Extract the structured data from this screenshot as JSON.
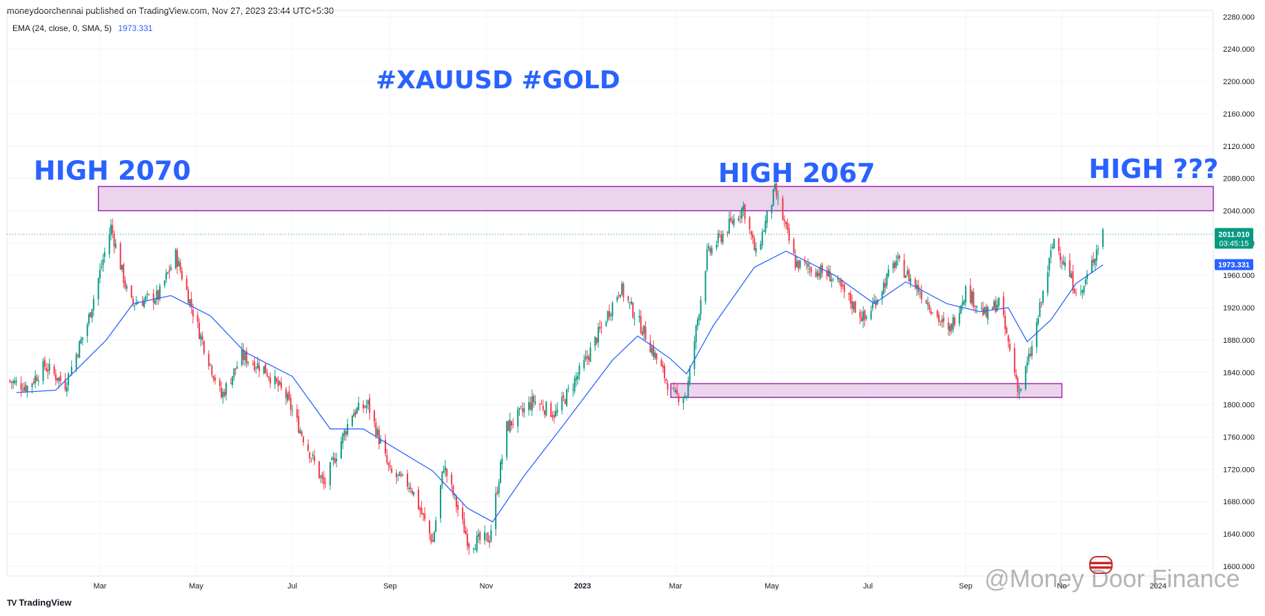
{
  "header": {
    "published": "moneydoorchennai published on TradingView.com, Nov 27, 2023 23:44 UTC+5:30",
    "indicator_label": "EMA (24, close, 0, SMA, 5)",
    "indicator_value": "1973.331"
  },
  "footer": {
    "logo_mark": "TV",
    "logo_text": "TradingView",
    "watermark": "@Money  Door Finance"
  },
  "colors": {
    "up": "#089981",
    "down": "#f23645",
    "ema": "#2962ff",
    "zone_fill": "#e9cdea",
    "zone_stroke": "#9c27b0",
    "annotation": "#2962ff",
    "price_line": "#089981"
  },
  "chart_data": {
    "type": "candlestick",
    "title": "#XAUUSD #GOLD",
    "instrument": "XAUUSD",
    "y_ticks": [
      "2280.000",
      "2240.000",
      "2200.000",
      "2160.000",
      "2120.000",
      "2080.000",
      "2040.000",
      "2000.000",
      "1960.000",
      "1920.000",
      "1880.000",
      "1840.000",
      "1800.000",
      "1760.000",
      "1720.000",
      "1680.000",
      "1640.000",
      "1600.000"
    ],
    "ylim": [
      1588,
      2288
    ],
    "x_range": [
      "2022-01-01",
      "2024-02-05"
    ],
    "x_ticks": [
      {
        "date": "2022-03-01",
        "label": "Mar",
        "bold": false
      },
      {
        "date": "2022-05-01",
        "label": "May",
        "bold": false
      },
      {
        "date": "2022-07-01",
        "label": "Jul",
        "bold": false
      },
      {
        "date": "2022-09-01",
        "label": "Sep",
        "bold": false
      },
      {
        "date": "2022-11-01",
        "label": "Nov",
        "bold": false
      },
      {
        "date": "2023-01-01",
        "label": "2023",
        "bold": true
      },
      {
        "date": "2023-03-01",
        "label": "Mar",
        "bold": false
      },
      {
        "date": "2023-05-01",
        "label": "May",
        "bold": false
      },
      {
        "date": "2023-07-01",
        "label": "Jul",
        "bold": false
      },
      {
        "date": "2023-09-01",
        "label": "Sep",
        "bold": false
      },
      {
        "date": "2023-11-01",
        "label": "No",
        "bold": false
      },
      {
        "date": "2024-01-01",
        "label": "2024",
        "bold": false
      }
    ],
    "price_path": [
      [
        "2022-01-01",
        1830
      ],
      [
        "2022-01-14",
        1822
      ],
      [
        "2022-01-25",
        1848
      ],
      [
        "2022-02-07",
        1825
      ],
      [
        "2022-02-21",
        1900
      ],
      [
        "2022-03-08",
        2020
      ],
      [
        "2022-03-20",
        1925
      ],
      [
        "2022-04-07",
        1934
      ],
      [
        "2022-04-18",
        1985
      ],
      [
        "2022-05-03",
        1890
      ],
      [
        "2022-05-17",
        1810
      ],
      [
        "2022-05-30",
        1860
      ],
      [
        "2022-06-13",
        1845
      ],
      [
        "2022-06-27",
        1810
      ],
      [
        "2022-07-21",
        1700
      ],
      [
        "2022-08-08",
        1790
      ],
      [
        "2022-08-18",
        1800
      ],
      [
        "2022-09-01",
        1715
      ],
      [
        "2022-09-14",
        1700
      ],
      [
        "2022-09-28",
        1630
      ],
      [
        "2022-10-05",
        1725
      ],
      [
        "2022-10-21",
        1628
      ],
      [
        "2022-11-03",
        1635
      ],
      [
        "2022-11-14",
        1772
      ],
      [
        "2022-12-01",
        1805
      ],
      [
        "2022-12-15",
        1788
      ],
      [
        "2023-01-02",
        1850
      ],
      [
        "2023-01-25",
        1945
      ],
      [
        "2023-02-09",
        1890
      ],
      [
        "2023-02-28",
        1810
      ],
      [
        "2023-03-08",
        1813
      ],
      [
        "2023-03-21",
        1985
      ],
      [
        "2023-04-13",
        2045
      ],
      [
        "2023-04-21",
        1985
      ],
      [
        "2023-05-03",
        2065
      ],
      [
        "2023-05-16",
        1975
      ],
      [
        "2023-06-07",
        1960
      ],
      [
        "2023-06-29",
        1905
      ],
      [
        "2023-07-19",
        1978
      ],
      [
        "2023-08-07",
        1930
      ],
      [
        "2023-08-21",
        1888
      ],
      [
        "2023-09-01",
        1942
      ],
      [
        "2023-09-14",
        1910
      ],
      [
        "2023-09-22",
        1928
      ],
      [
        "2023-10-05",
        1815
      ],
      [
        "2023-10-13",
        1870
      ],
      [
        "2023-10-27",
        2005
      ],
      [
        "2023-11-08",
        1950
      ],
      [
        "2023-11-13",
        1935
      ],
      [
        "2023-11-27",
        2015
      ]
    ],
    "ema": {
      "label": "EMA (24, close, 0, SMA, 5)",
      "last": 1973.331,
      "points": [
        [
          "2022-01-07",
          1815
        ],
        [
          "2022-02-01",
          1818
        ],
        [
          "2022-03-05",
          1880
        ],
        [
          "2022-03-22",
          1925
        ],
        [
          "2022-04-15",
          1935
        ],
        [
          "2022-05-10",
          1910
        ],
        [
          "2022-06-01",
          1865
        ],
        [
          "2022-07-01",
          1835
        ],
        [
          "2022-07-25",
          1770
        ],
        [
          "2022-08-15",
          1770
        ],
        [
          "2022-09-05",
          1745
        ],
        [
          "2022-09-28",
          1718
        ],
        [
          "2022-10-20",
          1672
        ],
        [
          "2022-11-05",
          1655
        ],
        [
          "2022-11-25",
          1712
        ],
        [
          "2022-12-20",
          1775
        ],
        [
          "2023-01-20",
          1855
        ],
        [
          "2023-02-05",
          1885
        ],
        [
          "2023-02-25",
          1858
        ],
        [
          "2023-03-08",
          1838
        ],
        [
          "2023-03-25",
          1898
        ],
        [
          "2023-04-20",
          1970
        ],
        [
          "2023-05-10",
          1990
        ],
        [
          "2023-06-10",
          1960
        ],
        [
          "2023-07-05",
          1925
        ],
        [
          "2023-07-25",
          1952
        ],
        [
          "2023-08-20",
          1925
        ],
        [
          "2023-09-10",
          1915
        ],
        [
          "2023-09-28",
          1920
        ],
        [
          "2023-10-10",
          1878
        ],
        [
          "2023-10-25",
          1905
        ],
        [
          "2023-11-10",
          1950
        ],
        [
          "2023-11-27",
          1973
        ]
      ]
    },
    "zones": [
      {
        "from": "2022-02-28",
        "to": "2024-02-05",
        "low": 2040,
        "high": 2070,
        "label": "resistance"
      },
      {
        "from": "2023-02-26",
        "to": "2023-11-01",
        "low": 1809,
        "high": 1826,
        "label": "support"
      }
    ],
    "annotations": [
      {
        "text": "HIGH 2070",
        "date": "2022-01-18",
        "price": 2070
      },
      {
        "text": "HIGH 2067",
        "date": "2023-03-28",
        "price": 2067
      },
      {
        "text": "HIGH ???",
        "date": "2023-11-18",
        "price": 2072
      }
    ],
    "current_price": {
      "value": "2011.010",
      "countdown": "03:45:15",
      "price": 2011.01
    },
    "ema_label": {
      "value": "1973.331",
      "price": 1973.331
    },
    "grid": true
  }
}
